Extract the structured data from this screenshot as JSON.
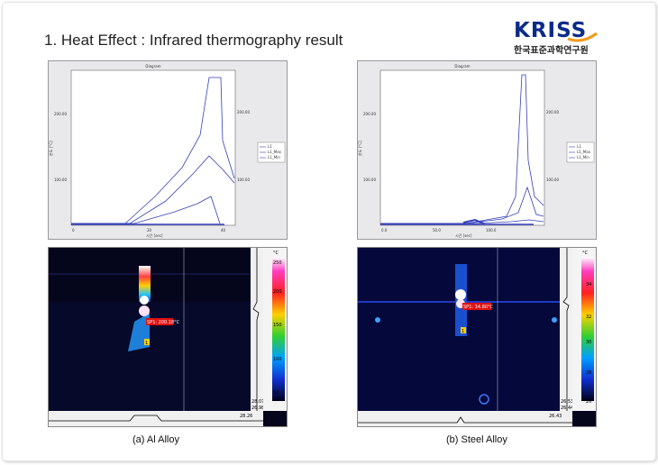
{
  "heading": "1. Heat Effect : Infrared thermography result",
  "logo": {
    "word": "KRISS",
    "subtitle": "한국표준과학연구원",
    "colors": {
      "word": "#0b2b8a",
      "swoosh": "#f39a1b"
    }
  },
  "graph_a": {
    "title": "Diagram",
    "y_ticks": [
      "200.00",
      "100.00"
    ],
    "x_ticks": [
      "0",
      "20",
      "40"
    ],
    "right_ticks": [
      "200.00",
      "100.00"
    ],
    "xlabel": "시간 [sec]",
    "ylabel": "온도 [°C]",
    "legend": [
      "L1",
      "L1_Max",
      "L1_Min"
    ]
  },
  "graph_b": {
    "title": "Diagram",
    "y_ticks": [
      "200.00",
      "100.00"
    ],
    "x_ticks": [
      "0.0",
      "50.0",
      "100.0"
    ],
    "right_ticks": [
      "200.00",
      "100.00"
    ],
    "xlabel": "시간 [sec]",
    "ylabel": "온도 [°C]",
    "legend": [
      "L1",
      "L1_Max",
      "L1_Min"
    ]
  },
  "thermo_a": {
    "unit": "°C",
    "scale": [
      "250",
      "200",
      "150",
      "100",
      "50"
    ],
    "spot_label": "SP1: 200.18°C",
    "marker": "1",
    "bottom_values": [
      "28.07",
      "26.98"
    ],
    "strip_value": "28.26"
  },
  "thermo_b": {
    "unit": "°C",
    "scale": [
      "34",
      "32",
      "30",
      "28",
      "26"
    ],
    "spot_label": "SP1: 34.80°C",
    "marker": "1",
    "bottom_values": [
      "26.53",
      "26.44"
    ],
    "strip_value": "26.43"
  },
  "captions": [
    "(a) Al Alloy",
    "(b) Steel Alloy"
  ],
  "colors": {
    "series": "#3340b8",
    "ir_bg": "#05061c",
    "accent_line": "#6a6adf"
  }
}
